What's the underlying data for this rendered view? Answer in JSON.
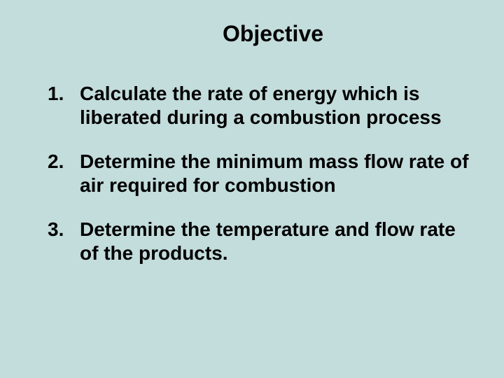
{
  "slide": {
    "background_color": "#c3dcdc",
    "text_color": "#000000",
    "title": "Objective",
    "title_fontsize": 32,
    "title_fontweight": "bold",
    "body_fontsize": 28,
    "body_fontweight": "bold",
    "font_family": "Arial",
    "items": [
      "Calculate the rate of energy which is liberated during a combustion process",
      "Determine the minimum mass flow rate of air required for combustion",
      "Determine the temperature and flow rate of the products."
    ]
  }
}
